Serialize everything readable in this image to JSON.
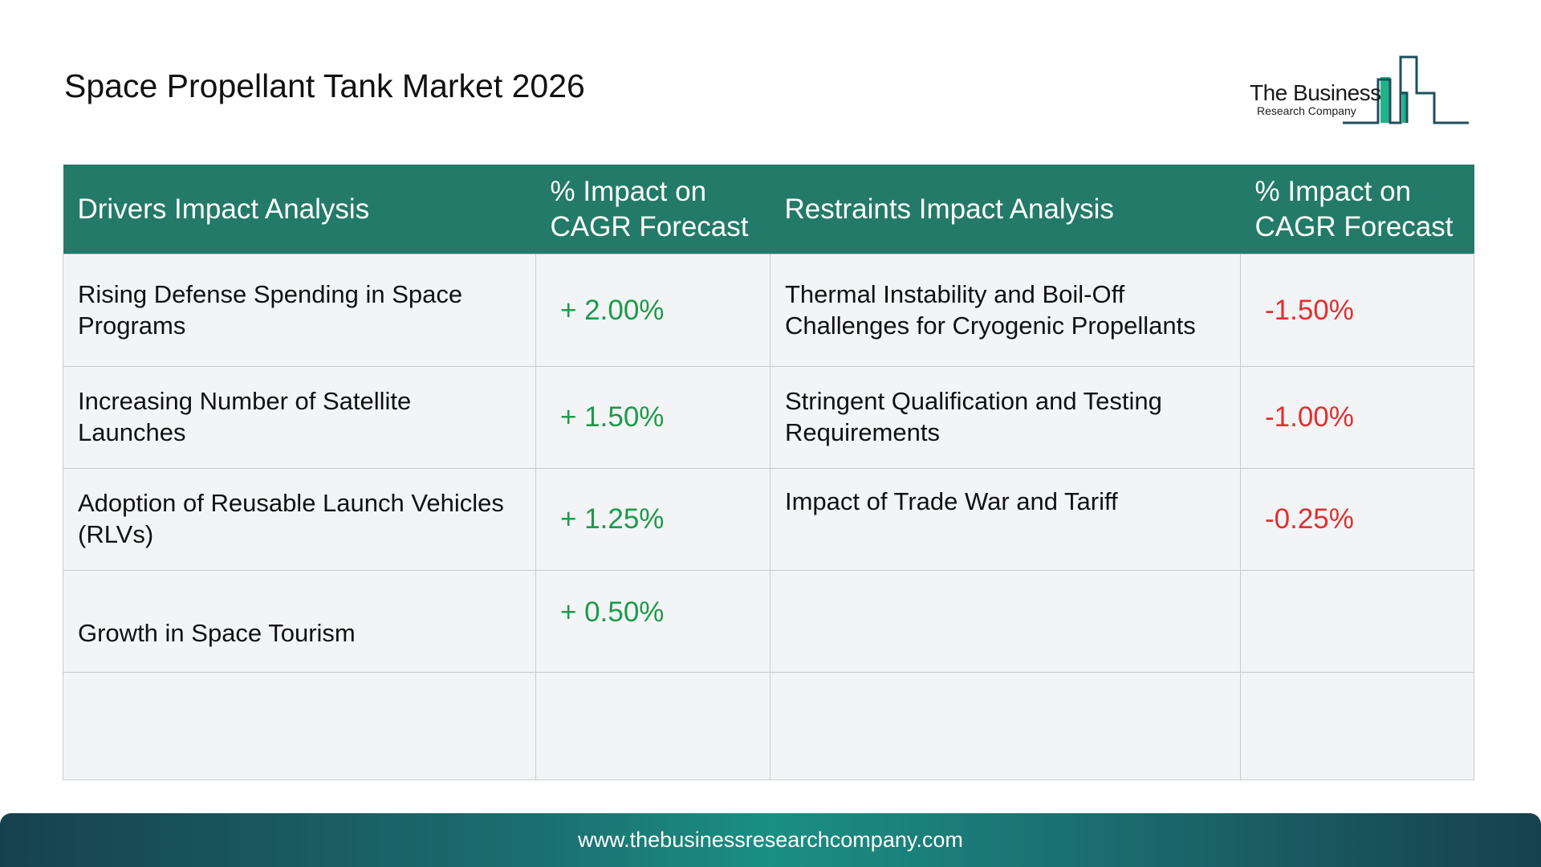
{
  "title": "Space Propellant Tank Market 2026",
  "logo": {
    "line1": "The Business",
    "line2": "Research Company"
  },
  "table": {
    "headers": [
      "Drivers Impact Analysis",
      "% Impact on CAGR Forecast",
      "Restraints Impact Analysis",
      "% Impact on CAGR Forecast"
    ],
    "rows": [
      [
        "Rising Defense Spending in Space Programs",
        "+ 2.00%",
        "Thermal Instability and Boil-Off Challenges for Cryogenic Propellants",
        "-1.50%"
      ],
      [
        "Increasing Number of Satellite Launches",
        "+ 1.50%",
        "Stringent Qualification and Testing Requirements",
        "-1.00%"
      ],
      [
        "Adoption of Reusable Launch Vehicles (RLVs)",
        "+ 1.25%",
        "Impact of Trade War and Tariff",
        "-0.25%"
      ],
      [
        "Growth in Space Tourism",
        "+ 0.50%",
        "",
        ""
      ],
      [
        "",
        "",
        "",
        ""
      ]
    ]
  },
  "colors": {
    "header": "#237a68",
    "positive": "#1c9a4a",
    "negative": "#e03030"
  },
  "footer": {
    "url": "www.thebusinessresearchcompany.com"
  }
}
